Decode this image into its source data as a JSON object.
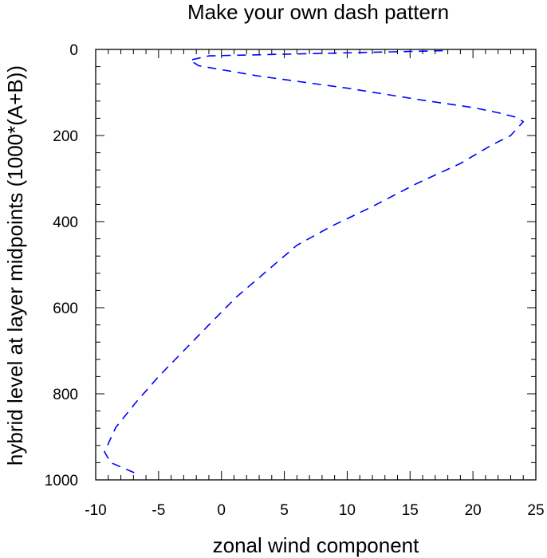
{
  "chart_data": {
    "type": "line",
    "title": "Make your own dash pattern",
    "xlabel": "zonal wind component",
    "ylabel": "hybrid level at layer midpoints (1000*(A+B))",
    "xlim": [
      -10,
      25
    ],
    "ylim": [
      1000,
      0
    ],
    "y_reversed": true,
    "xticks": [
      -10,
      -5,
      0,
      5,
      10,
      15,
      20,
      25
    ],
    "xtick_labels": [
      "-10",
      "-5",
      "0",
      "5",
      "10",
      "15",
      "20",
      "25"
    ],
    "yticks": [
      0,
      200,
      400,
      600,
      800,
      1000
    ],
    "ytick_labels": [
      "0",
      "200",
      "400",
      "600",
      "800",
      "1000"
    ],
    "grid": false,
    "line_style": "dashed",
    "line_color": "#0000ff",
    "series": [
      {
        "x": [
          17.6,
          -1.0,
          -2.5,
          -1.8,
          3.0,
          10.0,
          16.0,
          20.0,
          22.0,
          23.5,
          24.0,
          23.0,
          21.5,
          19.0,
          15.5,
          11.8,
          8.8,
          6.0,
          3.8,
          1.2,
          -1.0,
          -3.0,
          -5.0,
          -6.8,
          -8.4,
          -9.3,
          -8.8,
          -6.8
        ],
        "y": [
          3,
          15,
          25,
          38,
          62,
          90,
          118,
          135,
          147,
          158,
          168,
          200,
          222,
          265,
          312,
          368,
          410,
          455,
          510,
          575,
          640,
          700,
          760,
          820,
          878,
          935,
          960,
          985
        ]
      }
    ]
  }
}
